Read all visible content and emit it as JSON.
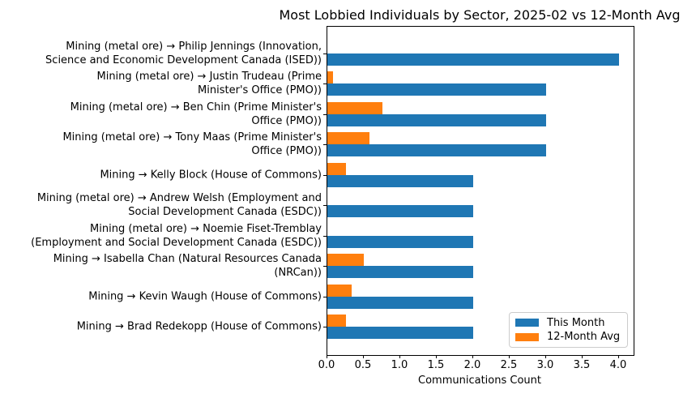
{
  "chart_data": {
    "type": "bar",
    "orientation": "horizontal",
    "title": "Most Lobbied Individuals by Sector, 2025-02 vs 12-Month Avg",
    "xlabel": "Communications Count",
    "ylabel": "",
    "xlim": [
      0,
      4.2
    ],
    "x_ticks": [
      0.0,
      0.5,
      1.0,
      1.5,
      2.0,
      2.5,
      3.0,
      3.5,
      4.0
    ],
    "grid": false,
    "legend_position": "lower right",
    "categories": [
      "Mining (metal ore) → Philip Jennings (Innovation,\nScience and Economic Development Canada (ISED))",
      "Mining (metal ore) → Justin Trudeau (Prime\nMinister's Office (PMO))",
      "Mining (metal ore) → Ben Chin (Prime Minister's\nOffice (PMO))",
      "Mining (metal ore) → Tony Maas (Prime Minister's\nOffice (PMO))",
      "Mining → Kelly Block (House of Commons)",
      "Mining (metal ore) → Andrew Welsh (Employment and\nSocial Development Canada (ESDC))",
      "Mining (metal ore) → Noemie Fiset-Tremblay\n(Employment and Social Development Canada (ESDC))",
      "Mining → Isabella Chan (Natural Resources Canada\n(NRCan))",
      "Mining → Kevin Waugh (House of Commons)",
      "Mining → Brad Redekopp (House of Commons)"
    ],
    "series": [
      {
        "name": "This Month",
        "color": "#1f77b4",
        "values": [
          4,
          3,
          3,
          3,
          2,
          2,
          2,
          2,
          2,
          2
        ]
      },
      {
        "name": "12-Month Avg",
        "color": "#ff7f0e",
        "values": [
          0,
          0.08,
          0.75,
          0.58,
          0.25,
          0,
          0,
          0.5,
          0.33,
          0.25
        ]
      }
    ]
  }
}
